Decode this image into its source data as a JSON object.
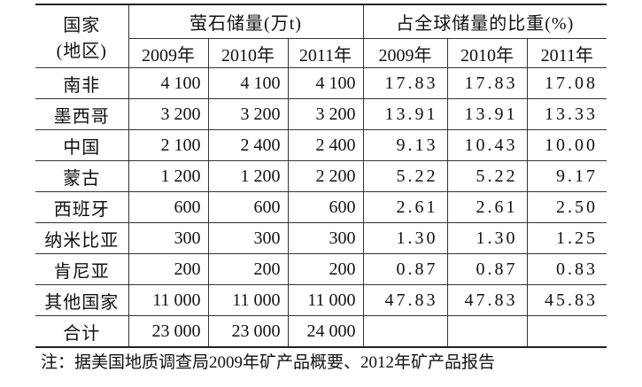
{
  "table": {
    "header": {
      "country": [
        "国家",
        "(地区)"
      ],
      "groups": [
        "萤石储量(万t)",
        "占全球储量的比重(%)"
      ],
      "years": [
        "2009年",
        "2010年",
        "2011年",
        "2009年",
        "2010年",
        "2011年"
      ]
    },
    "rows": [
      [
        "南非",
        "4 100",
        "4 100",
        "4 100",
        "17.83",
        "17.83",
        "17.08"
      ],
      [
        "墨西哥",
        "3 200",
        "3 200",
        "3 200",
        "13.91",
        "13.91",
        "13.33"
      ],
      [
        "中国",
        "2 100",
        "2 400",
        "2 400",
        "9.13",
        "10.43",
        "10.00"
      ],
      [
        "蒙古",
        "1 200",
        "1 200",
        "2 200",
        "5.22",
        "5.22",
        "9.17"
      ],
      [
        "西班牙",
        "600",
        "600",
        "600",
        "2.61",
        "2.61",
        "2.50"
      ],
      [
        "纳米比亚",
        "300",
        "300",
        "300",
        "1.30",
        "1.30",
        "1.25"
      ],
      [
        "肯尼亚",
        "200",
        "200",
        "200",
        "0.87",
        "0.87",
        "0.83"
      ],
      [
        "其他国家",
        "11 000",
        "11 000",
        "11 000",
        "47.83",
        "47.83",
        "45.83"
      ],
      [
        "合计",
        "23 000",
        "23 000",
        "24 000"
      ]
    ],
    "note": "注：据美国地质调查局2009年矿产品概要、2012年矿产品报告"
  }
}
